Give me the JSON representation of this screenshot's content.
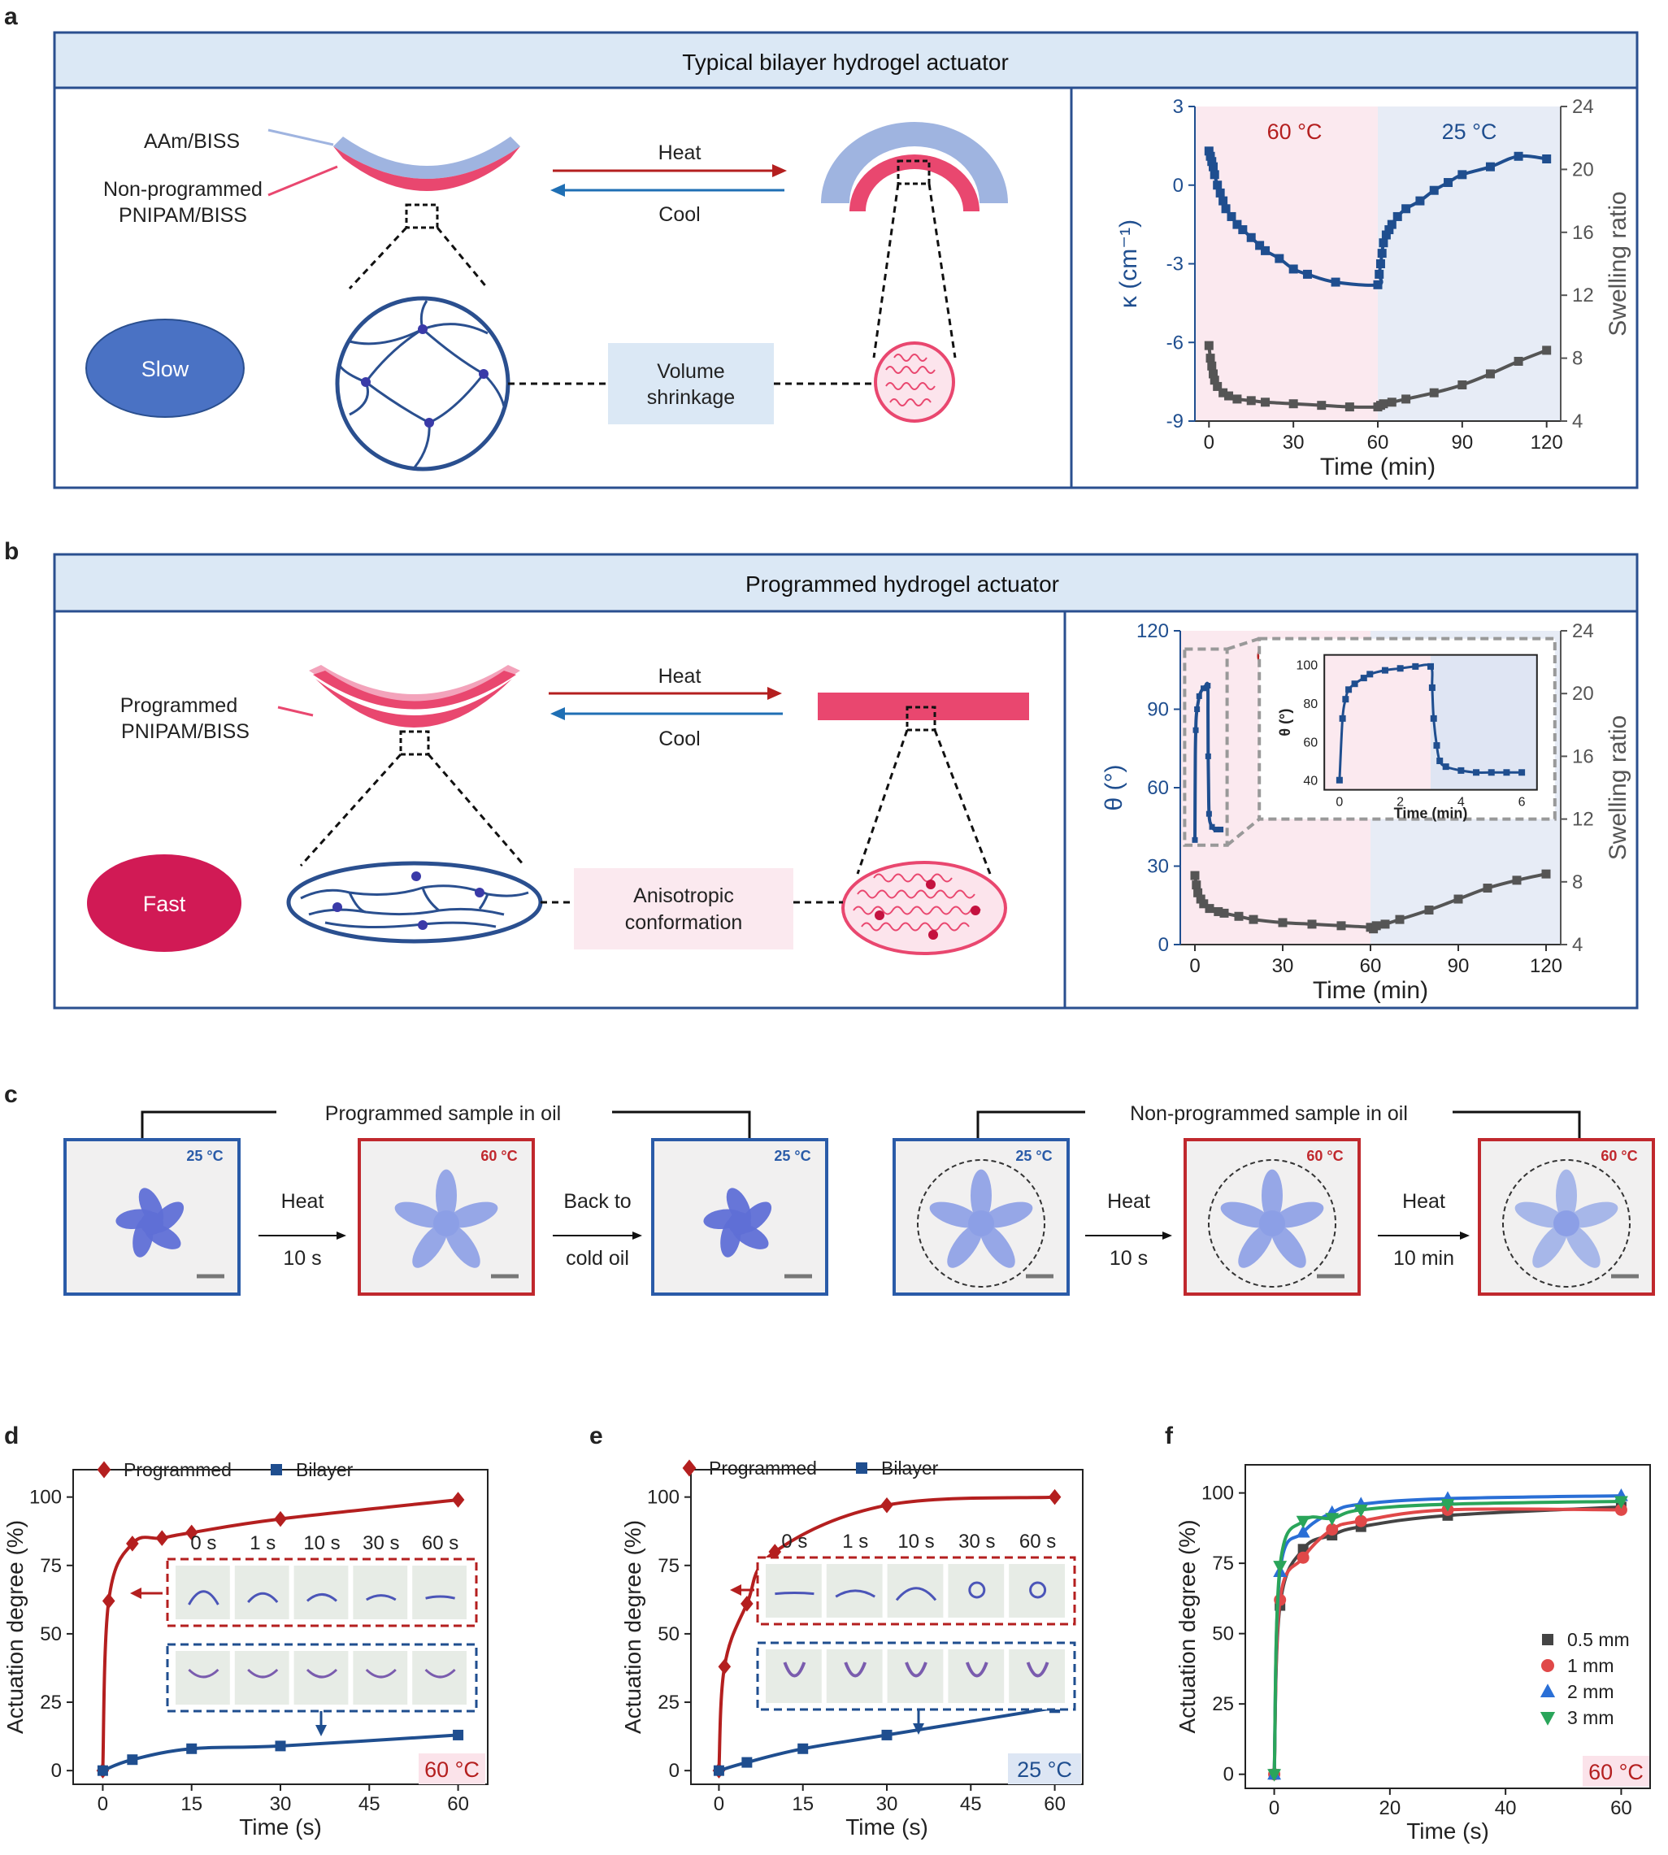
{
  "colors": {
    "red": "#b41f1f",
    "blue": "#1f4e8f",
    "gray": "#555555",
    "header_fill": "#dbe8f5",
    "pink_bg": "#fbe9ef",
    "blue_bg": "#e7ecf6",
    "pink_gel": "#e9476f",
    "lavender_gel": "#9fb4e0",
    "ellipse_slow": "#4a72c4",
    "ellipse_fast": "#d11a55"
  },
  "panel_a": {
    "letter": "a",
    "header": "Typical bilayer hydrogel actuator",
    "label_top": "AAm/BISS",
    "label_bottom_1": "Non-programmed",
    "label_bottom_2": "PNIPAM/BISS",
    "heat": "Heat",
    "cool": "Cool",
    "speed": "Slow",
    "box_line1": "Volume",
    "box_line2": "shrinkage"
  },
  "panel_b": {
    "letter": "b",
    "header": "Programmed hydrogel actuator",
    "label_1": "Programmed",
    "label_2": "PNIPAM/BISS",
    "heat": "Heat",
    "cool": "Cool",
    "speed": "Fast",
    "box_line1": "Anisotropic",
    "box_line2": "conformation"
  },
  "panel_c": {
    "letter": "c",
    "group1": "Programmed sample in oil",
    "group2": "Non-programmed sample in oil",
    "photos": [
      {
        "temp": "25 °C",
        "kind": "cold"
      },
      {
        "temp": "60 °C",
        "kind": "hot"
      },
      {
        "temp": "25 °C",
        "kind": "cold"
      },
      {
        "temp": "25 °C",
        "kind": "cold"
      },
      {
        "temp": "60 °C",
        "kind": "hot"
      },
      {
        "temp": "60 °C",
        "kind": "hot"
      }
    ],
    "arrows": [
      {
        "top": "Heat",
        "bottom": "10 s"
      },
      {
        "top": "Back to",
        "bottom": "cold oil"
      },
      {
        "top": "Heat",
        "bottom": "10 s"
      },
      {
        "top": "Heat",
        "bottom": "10 min"
      }
    ]
  },
  "insets": {
    "times": [
      "0 s",
      "1 s",
      "10 s",
      "30 s",
      "60 s"
    ]
  },
  "chart_data": [
    {
      "id": "a-chart",
      "type": "line",
      "xlabel": "Time (min)",
      "ylabel_left": "κ (cm⁻¹)",
      "ylabel_right": "Swelling ratio",
      "xlim": [
        -5,
        125
      ],
      "ylim_left": [
        -9,
        3
      ],
      "ylim_right": [
        4,
        24
      ],
      "xticks": [
        0,
        30,
        60,
        90,
        120
      ],
      "yticks_left": [
        -9,
        -6,
        -3,
        0,
        3
      ],
      "yticks_right": [
        4,
        8,
        12,
        16,
        20,
        24
      ],
      "regions": [
        {
          "label": "60 °C",
          "from": -5,
          "to": 60
        },
        {
          "label": "25 °C",
          "from": 60,
          "to": 125
        }
      ],
      "series": [
        {
          "axis": "left",
          "x": [
            0,
            0.5,
            1,
            1.5,
            2,
            3,
            4,
            5,
            6,
            8,
            10,
            12,
            15,
            18,
            20,
            25,
            30,
            35,
            45,
            60,
            60.5,
            61,
            61.5,
            62,
            63,
            64,
            65,
            67,
            70,
            75,
            80,
            85,
            90,
            100,
            110,
            120
          ],
          "y": [
            1.3,
            1.1,
            0.9,
            0.7,
            0.4,
            0.0,
            -0.3,
            -0.6,
            -0.9,
            -1.2,
            -1.5,
            -1.7,
            -2.0,
            -2.3,
            -2.5,
            -2.8,
            -3.2,
            -3.4,
            -3.7,
            -3.8,
            -3.4,
            -3.0,
            -2.6,
            -2.2,
            -1.9,
            -1.7,
            -1.5,
            -1.2,
            -0.9,
            -0.6,
            -0.2,
            0.1,
            0.4,
            0.7,
            1.1,
            1.0
          ]
        },
        {
          "axis": "right",
          "x": [
            0,
            0.5,
            1,
            1.5,
            2,
            3,
            5,
            7,
            10,
            15,
            20,
            30,
            40,
            50,
            60,
            61,
            62,
            65,
            70,
            80,
            90,
            100,
            110,
            120
          ],
          "y": [
            8.8,
            8.0,
            7.5,
            7.0,
            6.6,
            6.2,
            5.8,
            5.6,
            5.4,
            5.3,
            5.2,
            5.1,
            5.0,
            4.9,
            4.9,
            5.0,
            5.1,
            5.2,
            5.4,
            5.8,
            6.3,
            7.0,
            7.8,
            8.5
          ]
        }
      ]
    },
    {
      "id": "b-chart",
      "type": "line",
      "xlabel": "Time (min)",
      "ylabel_left": "θ (°)",
      "ylabel_right": "Swelling ratio",
      "xlim": [
        -5,
        125
      ],
      "ylim_left": [
        0,
        120
      ],
      "ylim_right": [
        4,
        24
      ],
      "xticks": [
        0,
        30,
        60,
        90,
        120
      ],
      "yticks_left": [
        0,
        30,
        60,
        90,
        120
      ],
      "yticks_right": [
        4,
        8,
        12,
        16,
        20,
        24
      ],
      "regions": [
        {
          "label": "60 °C",
          "from": -5,
          "to": 60
        },
        {
          "label": "25 °C",
          "from": 60,
          "to": 125
        }
      ],
      "series": [
        {
          "axis": "right",
          "x": [
            0,
            0.5,
            1,
            2,
            3,
            5,
            8,
            10,
            15,
            20,
            30,
            40,
            50,
            60,
            61,
            62,
            65,
            70,
            80,
            90,
            100,
            110,
            120
          ],
          "y": [
            8.4,
            7.8,
            7.3,
            6.9,
            6.6,
            6.3,
            6.1,
            6.0,
            5.8,
            5.6,
            5.4,
            5.3,
            5.2,
            5.1,
            5.0,
            5.2,
            5.3,
            5.6,
            6.2,
            6.9,
            7.6,
            8.1,
            8.5
          ]
        }
      ],
      "inset": {
        "xlabel": "Time (min)",
        "ylabel": "θ (°)",
        "xlim": [
          -0.5,
          6.5
        ],
        "ylim": [
          35,
          105
        ],
        "xticks": [
          0,
          2,
          4,
          6
        ],
        "yticks": [
          40,
          60,
          80,
          100
        ],
        "x": [
          0,
          0.1,
          0.2,
          0.3,
          0.5,
          0.8,
          1,
          1.5,
          2,
          2.5,
          3,
          3.05,
          3.1,
          3.2,
          3.3,
          3.5,
          4,
          4.5,
          5,
          5.5,
          6
        ],
        "y": [
          40,
          72,
          82,
          87,
          90,
          93,
          95,
          97,
          98,
          99,
          99,
          88,
          72,
          58,
          50,
          47,
          45,
          44,
          44,
          44,
          44
        ]
      }
    },
    {
      "id": "d-chart",
      "type": "line",
      "xlabel": "Time (s)",
      "ylabel": "Actuation degree (%)",
      "xlim": [
        -5,
        65
      ],
      "ylim": [
        -5,
        110
      ],
      "xticks": [
        0,
        15,
        30,
        45,
        60
      ],
      "yticks": [
        0,
        25,
        50,
        75,
        100
      ],
      "annotation": "60 °C",
      "series": [
        {
          "name": "Programmed",
          "x": [
            0,
            1,
            5,
            10,
            15,
            30,
            60
          ],
          "y": [
            0,
            62,
            83,
            85,
            87,
            92,
            99
          ]
        },
        {
          "name": "Bilayer",
          "x": [
            0,
            5,
            15,
            30,
            60
          ],
          "y": [
            0,
            4,
            8,
            9,
            13
          ]
        }
      ]
    },
    {
      "id": "e-chart",
      "type": "line",
      "xlabel": "Time (s)",
      "ylabel": "Actuation degree (%)",
      "xlim": [
        -5,
        65
      ],
      "ylim": [
        -5,
        110
      ],
      "xticks": [
        0,
        15,
        30,
        45,
        60
      ],
      "yticks": [
        0,
        25,
        50,
        75,
        100
      ],
      "annotation": "25 °C",
      "series": [
        {
          "name": "Programmed",
          "x": [
            0,
            1,
            5,
            10,
            30,
            60
          ],
          "y": [
            0,
            38,
            61,
            80,
            97,
            100
          ]
        },
        {
          "name": "Bilayer",
          "x": [
            0,
            5,
            15,
            30,
            60
          ],
          "y": [
            0,
            3,
            8,
            13,
            23
          ]
        }
      ]
    },
    {
      "id": "f-chart",
      "type": "line",
      "xlabel": "Time (s)",
      "ylabel": "Actuation degree (%)",
      "xlim": [
        -5,
        65
      ],
      "ylim": [
        -5,
        110
      ],
      "xticks": [
        0,
        20,
        40,
        60
      ],
      "yticks": [
        0,
        25,
        50,
        75,
        100
      ],
      "annotation": "60 °C",
      "series": [
        {
          "name": "0.5 mm",
          "x": [
            0,
            1,
            5,
            10,
            15,
            30,
            60
          ],
          "y": [
            0,
            60,
            80,
            85,
            88,
            92,
            95
          ]
        },
        {
          "name": "1 mm",
          "x": [
            0,
            1,
            5,
            10,
            15,
            30,
            60
          ],
          "y": [
            0,
            62,
            77,
            87,
            90,
            94,
            94
          ]
        },
        {
          "name": "2 mm",
          "x": [
            0,
            1,
            5,
            10,
            15,
            30,
            60
          ],
          "y": [
            0,
            72,
            86,
            93,
            96,
            98,
            99
          ]
        },
        {
          "name": "3 mm",
          "x": [
            0,
            1,
            5,
            10,
            15,
            30,
            60
          ],
          "y": [
            0,
            74,
            90,
            91,
            94,
            96,
            97
          ]
        }
      ]
    }
  ]
}
